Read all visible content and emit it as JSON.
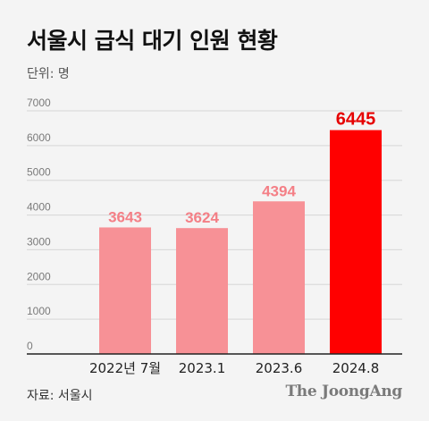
{
  "title": "서울시 급식 대기 인원 현황",
  "unit_label": "단위: 명",
  "source": "자료: 서울시",
  "logo": "The JoongAng",
  "colors": {
    "bar_normal": "#f79196",
    "bar_highlight": "#ff0000",
    "label_normal": "#f47f86",
    "label_highlight": "#e60000",
    "grid": "#d6d6d6",
    "axis": "#222222",
    "background": "#f4f4f4"
  },
  "chart_data": {
    "type": "bar",
    "title": "서울시 급식 대기 인원 현황",
    "xlabel": "",
    "ylabel": "",
    "categories": [
      "2022년 7월",
      "2023.1",
      "2023.6",
      "2024.8"
    ],
    "values": [
      3643,
      3624,
      4394,
      6445
    ],
    "highlight_index": 3,
    "ylim": [
      0,
      7000
    ],
    "yticks": [
      0,
      1000,
      2000,
      3000,
      4000,
      5000,
      6000,
      7000
    ],
    "grid": true,
    "data_labels": true
  }
}
